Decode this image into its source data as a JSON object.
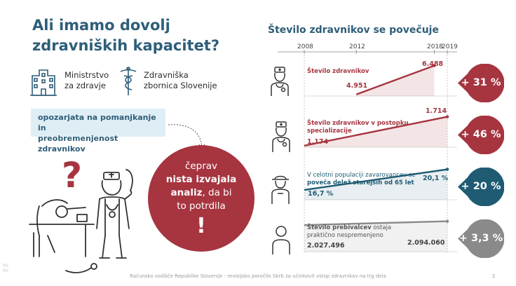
{
  "title": {
    "line1": "Ali imamo dovolj",
    "line2": "zdravniških kapacitet?"
  },
  "orgs": [
    {
      "line1": "Ministrstvo",
      "line2": "za zdravje",
      "icon": "building-icon"
    },
    {
      "line1": "Zdravniška",
      "line2": "zbornica Slovenije",
      "icon": "caduceus-icon"
    }
  ],
  "note": {
    "line1": "opozarjata na pomanjkanje in",
    "line2": "preobremenjenost zdravnikov"
  },
  "circle": {
    "line1": "čeprav",
    "line2": "nista izvajala",
    "line3": "analiz",
    "line3b": ", da bi",
    "line4": "to potrdila",
    "excl": "!"
  },
  "chart_data": {
    "type": "line",
    "title": "Število zdravnikov se povečuje",
    "x_ticks": [
      "2008",
      "2012",
      "2018",
      "2019"
    ],
    "series": [
      {
        "name_line1": "Število zdravnikov",
        "name_line2": "",
        "points": [
          {
            "x": 2012,
            "label": "4.951",
            "value": 4951
          },
          {
            "x": 2018,
            "label": "6.488",
            "value": 6488
          }
        ],
        "change": "+ 31 %",
        "color": "#a63540",
        "icon": "doctor-icon"
      },
      {
        "name_line1": "Število zdravnikov v postopku",
        "name_line2": "specializacije",
        "points": [
          {
            "x": 2008,
            "label": "1.174",
            "value": 1174
          },
          {
            "x": 2019,
            "label": "1.714",
            "value": 1714
          }
        ],
        "change": "+ 46 %",
        "color": "#a63540",
        "icon": "young-doctor-icon"
      },
      {
        "name_line1": "V celotni populaciji zavarovancev se",
        "name_line2": "poveča delež starejših od 65 let",
        "points": [
          {
            "x": 2008,
            "label": "16,7 %",
            "value": 16.7
          },
          {
            "x": 2019,
            "label": "20,1 %",
            "value": 20.1
          }
        ],
        "change": "+ 20 %",
        "color": "#1f5b73",
        "icon": "elderly-person-icon"
      },
      {
        "name_line1": "Število prebivalcev",
        "name_line1b": " ostaja",
        "name_line2": "praktično nespremenjeno",
        "points": [
          {
            "x": 2008,
            "label": "2.027.496",
            "value": 2027496
          },
          {
            "x": 2019,
            "label": "2.094.060",
            "value": 2094060
          }
        ],
        "change": "+ 3,3 %",
        "color": "#8a8a8a",
        "icon": "person-icon"
      }
    ]
  },
  "footer": "Računsko sodišče Republike Slovenije - revizijsko poročilo Skrb za učinkovit vstop zdravnikov na trg dela",
  "page_number": "2",
  "side_mark": {
    "line1": "RS",
    "line2": "RS"
  }
}
